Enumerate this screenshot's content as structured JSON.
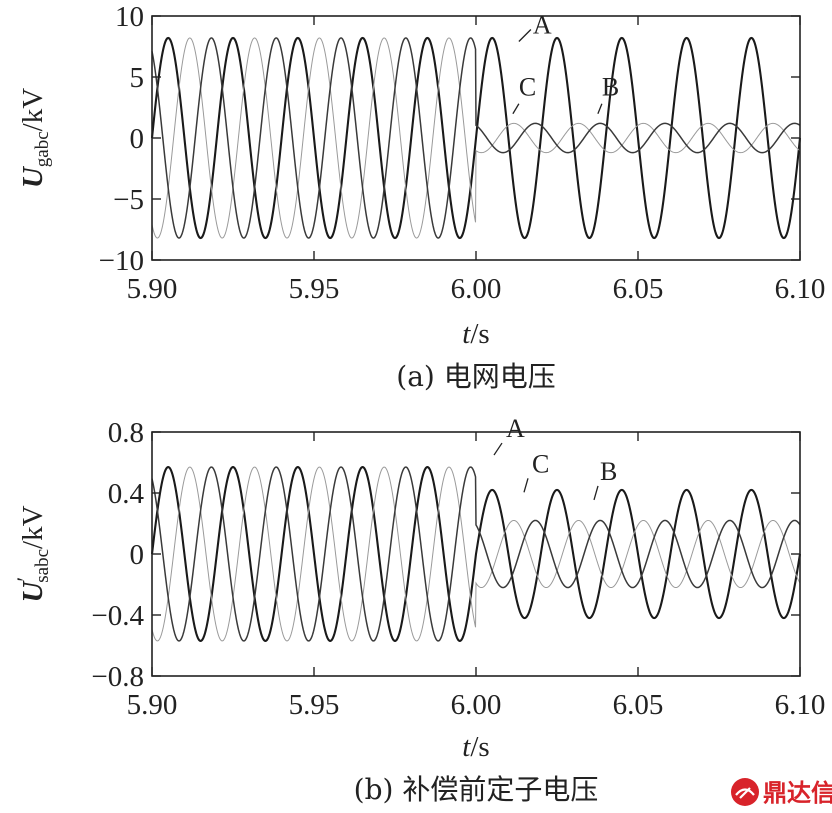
{
  "colors": {
    "phase_A": "#1a1a1a",
    "phase_B": "#9a9a9a",
    "phase_C": "#3a3a3a",
    "watermark": "#d8232a"
  },
  "watermark": {
    "text": "鼎达信",
    "icon": "logo-icon"
  },
  "chart_data": [
    {
      "type": "line",
      "caption": "(a) 电网电压",
      "xlabel": "t/s",
      "ylabel": {
        "main": "U",
        "sub": "gabc",
        "unit": "/kV"
      },
      "xlim": [
        5.9,
        6.1
      ],
      "ylim": [
        -10,
        10
      ],
      "xticks": [
        "5.90",
        "5.95",
        "6.00",
        "6.05",
        "6.10"
      ],
      "yticks": [
        "10",
        "5",
        "0",
        "−5",
        "−10"
      ],
      "ytick_values": [
        10,
        5,
        0,
        -5,
        -10
      ],
      "frequency_hz": 50,
      "fault_time": 6.0,
      "grid": false,
      "series": [
        {
          "name": "A",
          "phase_deg": 0,
          "amplitude_before": 8.2,
          "amplitude_after": 8.2
        },
        {
          "name": "B",
          "phase_deg": -120,
          "amplitude_before": 8.2,
          "amplitude_after": 1.2
        },
        {
          "name": "C",
          "phase_deg": 120,
          "amplitude_before": 8.2,
          "amplitude_after": 1.2
        }
      ],
      "annotations": [
        {
          "text": "A",
          "series": "A",
          "x": 6.012,
          "y": 8.4
        },
        {
          "text": "C",
          "series": "C",
          "x": 6.012,
          "y": 3.3
        },
        {
          "text": "B",
          "series": "B",
          "x": 6.037,
          "y": 3.3
        }
      ]
    },
    {
      "type": "line",
      "caption": "(b) 补偿前定子电压",
      "xlabel": "t/s",
      "ylabel": {
        "main": "U",
        "prime": "′",
        "sub": "sabc",
        "unit": "/kV"
      },
      "xlim": [
        5.9,
        6.1
      ],
      "ylim": [
        -0.8,
        0.8
      ],
      "xticks": [
        "5.90",
        "5.95",
        "6.00",
        "6.05",
        "6.10"
      ],
      "yticks": [
        "0.8",
        "0.4",
        "0",
        "−0.4",
        "−0.8"
      ],
      "ytick_values": [
        0.8,
        0.4,
        0,
        -0.4,
        -0.8
      ],
      "frequency_hz": 50,
      "fault_time": 6.0,
      "grid": false,
      "series": [
        {
          "name": "A",
          "phase_deg": 0,
          "amplitude_before": 0.57,
          "amplitude_after": 0.42
        },
        {
          "name": "B",
          "phase_deg": -120,
          "amplitude_before": 0.57,
          "amplitude_after": 0.22
        },
        {
          "name": "C",
          "phase_deg": 120,
          "amplitude_before": 0.57,
          "amplitude_after": 0.22
        }
      ],
      "annotations": [
        {
          "text": "A",
          "series": "A",
          "x": 6.0,
          "y": 0.57
        },
        {
          "text": "C",
          "series": "C",
          "x": 6.0,
          "y": 0.47
        },
        {
          "text": "B",
          "series": "B",
          "x": 6.0,
          "y": 0.42
        }
      ]
    }
  ]
}
